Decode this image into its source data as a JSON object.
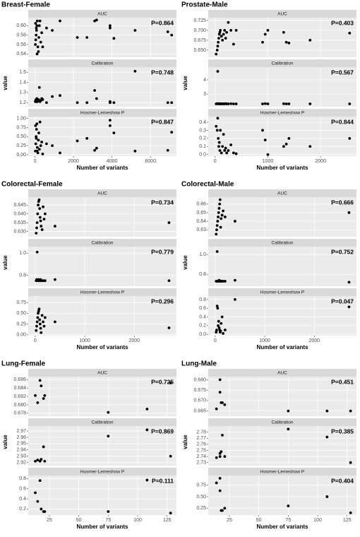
{
  "chart_data": [
    {
      "type": "scatter",
      "title": "Breast-Female",
      "xlabel": "Number of variants",
      "ylabel": "value",
      "color": "#000000",
      "grid": true,
      "xlim": [
        -350,
        7350
      ],
      "xticks": [
        0,
        2000,
        4000,
        6000
      ],
      "x": [
        20,
        40,
        60,
        80,
        100,
        120,
        150,
        180,
        200,
        230,
        260,
        300,
        350,
        400,
        30,
        70,
        110,
        600,
        900,
        1300,
        2200,
        2700,
        3100,
        3200,
        3900,
        3900,
        4100,
        5200,
        6900,
        7100
      ],
      "facets": [
        {
          "strip": "AUC",
          "annotation": "P=0.864",
          "ylim": [
            0.533,
            0.617
          ],
          "yticks": [
            0.54,
            0.56,
            0.58,
            {
              "value": 0.6,
              "label": "0.60"
            }
          ],
          "values": [
            0.56,
            0.57,
            0.58,
            0.59,
            0.6,
            0.61,
            0.555,
            0.545,
            0.575,
            0.6,
            0.61,
            0.565,
            0.585,
            0.555,
            0.605,
            0.595,
            0.54,
            0.595,
            0.59,
            0.61,
            0.575,
            0.575,
            0.61,
            0.612,
            0.6,
            0.595,
            0.573,
            0.59,
            0.587,
            0.58
          ]
        },
        {
          "strip": "Calibration",
          "annotation": "P=0.748",
          "ylim": [
            1.16,
            1.55
          ],
          "yticks": [
            1.2,
            1.3,
            1.4,
            1.5
          ],
          "values": [
            1.21,
            1.22,
            1.23,
            1.22,
            1.24,
            1.21,
            1.22,
            1.23,
            1.22,
            1.35,
            1.21,
            1.22,
            1.24,
            1.23,
            1.22,
            1.21,
            1.23,
            1.2,
            1.26,
            1.27,
            1.2,
            1.2,
            1.32,
            1.24,
            1.2,
            1.21,
            1.2,
            1.51,
            1.2,
            1.2
          ]
        },
        {
          "strip": "Hosmer-Lemeshow P",
          "annotation": "P=0.847",
          "ylim": [
            -0.04,
            1.05
          ],
          "yticks": [
            {
              "value": 0,
              "label": "0.00"
            },
            0.25,
            {
              "value": 0.5,
              "label": "0.50"
            },
            0.75,
            {
              "value": 1,
              "label": "1.00"
            }
          ],
          "values": [
            0.1,
            0.3,
            0.5,
            0.7,
            0.85,
            0.2,
            0.05,
            0.4,
            0.6,
            0.15,
            0.9,
            0.25,
            0.35,
            0.02,
            0.8,
            0.45,
            0.1,
            0.3,
            0.25,
            0.05,
            0.38,
            0.45,
            0.12,
            0.18,
            0.95,
            0.8,
            0.6,
            0.1,
            0.12,
            0.62
          ]
        }
      ]
    },
    {
      "type": "scatter",
      "title": "Prostate-Male",
      "xlabel": "Number of variants",
      "ylabel": "value",
      "color": "#000000",
      "grid": true,
      "xlim": [
        -130,
        2680
      ],
      "xticks": [
        0,
        1000,
        2000
      ],
      "x": [
        20,
        40,
        50,
        60,
        70,
        80,
        90,
        100,
        120,
        140,
        160,
        180,
        200,
        220,
        250,
        300,
        350,
        400,
        900,
        950,
        1000,
        1300,
        1350,
        1400,
        1800,
        2550
      ],
      "facets": [
        {
          "strip": "AUC",
          "annotation": "P=0.403",
          "ylim": [
            0.632,
            0.732
          ],
          "yticks": [
            {
              "value": 0.65,
              "label": "0.650"
            },
            {
              "value": 0.675,
              "label": "0.675"
            },
            {
              "value": 0.7,
              "label": "0.700"
            },
            {
              "value": 0.725,
              "label": "0.725"
            }
          ],
          "values": [
            0.64,
            0.65,
            0.66,
            0.67,
            0.68,
            0.69,
            0.695,
            0.7,
            0.685,
            0.675,
            0.69,
            0.7,
            0.68,
            0.695,
            0.72,
            0.7,
            0.665,
            0.7,
            0.67,
            0.69,
            0.7,
            0.695,
            0.67,
            0.668,
            0.675,
            0.693
          ]
        },
        {
          "strip": "Calibration",
          "annotation": "P=0.567",
          "ylim": [
            2.1,
            4.9
          ],
          "yticks": [
            3,
            4
          ],
          "values": [
            2.3,
            2.32,
            4.6,
            2.3,
            2.31,
            2.3,
            2.32,
            2.3,
            2.3,
            2.31,
            2.3,
            2.3,
            2.32,
            2.3,
            2.3,
            2.31,
            2.3,
            2.3,
            2.3,
            2.32,
            2.3,
            2.31,
            2.3,
            2.3,
            2.3,
            2.3
          ]
        },
        {
          "strip": "Hosmer-Lemeshow P",
          "annotation": "P=0.844",
          "ylim": [
            -0.02,
            0.47
          ],
          "yticks": [
            {
              "value": 0,
              "label": "0.0"
            },
            0.1,
            0.2,
            0.3,
            0.4
          ],
          "values": [
            0.35,
            0.3,
            0.45,
            0.2,
            0.1,
            0.15,
            0.05,
            0.3,
            0.02,
            0.1,
            0.25,
            0.05,
            0.08,
            0.02,
            0.05,
            0.12,
            0.02,
            0.01,
            0.3,
            0.18,
            0.0,
            0.1,
            0.13,
            0.2,
            0.1,
            0.2
          ]
        }
      ]
    },
    {
      "type": "scatter",
      "title": "Colorectal-Female",
      "xlabel": "Number of variants",
      "ylabel": "value",
      "color": "#000000",
      "grid": true,
      "xlim": [
        -140,
        2850
      ],
      "xticks": [
        0,
        1000,
        2000
      ],
      "x": [
        20,
        30,
        40,
        50,
        60,
        70,
        80,
        90,
        100,
        110,
        120,
        140,
        160,
        180,
        200,
        400,
        2700
      ],
      "facets": [
        {
          "strip": "AUC",
          "annotation": "P=0.734",
          "ylim": [
            0.627,
            0.6495
          ],
          "yticks": [
            {
              "value": 0.63,
              "label": "0.630"
            },
            {
              "value": 0.635,
              "label": "0.635"
            },
            {
              "value": 0.64,
              "label": "0.640"
            },
            {
              "value": 0.645,
              "label": "0.645"
            }
          ],
          "values": [
            0.629,
            0.632,
            0.635,
            0.64,
            0.645,
            0.647,
            0.648,
            0.643,
            0.638,
            0.636,
            0.633,
            0.631,
            0.644,
            0.637,
            0.64,
            0.633,
            0.635
          ]
        },
        {
          "strip": "Calibration",
          "annotation": "P=0.779",
          "ylim": [
            0.7,
            1.06
          ],
          "yticks": [
            0.8,
            {
              "value": 1,
              "label": "1.0"
            }
          ],
          "values": [
            0.75,
            0.76,
            1.01,
            0.75,
            0.75,
            0.76,
            0.75,
            0.75,
            0.75,
            0.76,
            0.75,
            0.75,
            0.75,
            0.75,
            0.75,
            0.76,
            0.75
          ]
        },
        {
          "strip": "Hosmer-Lemeshow P",
          "annotation": "P=0.296",
          "ylim": [
            -0.02,
            0.9
          ],
          "yticks": [
            {
              "value": 0,
              "label": "0.00"
            },
            0.25,
            {
              "value": 0.5,
              "label": "0.50"
            },
            0.75
          ],
          "values": [
            0.1,
            0.2,
            0.3,
            0.4,
            0.5,
            0.55,
            0.6,
            0.35,
            0.25,
            0.15,
            0.05,
            0.45,
            0.3,
            0.2,
            0.4,
            0.3,
            0.16
          ]
        }
      ]
    },
    {
      "type": "scatter",
      "title": "Colorectal-Male",
      "xlabel": "Number of variants",
      "ylabel": "value",
      "color": "#000000",
      "grid": true,
      "xlim": [
        -140,
        2850
      ],
      "xticks": [
        0,
        1000,
        2000
      ],
      "x": [
        20,
        30,
        40,
        50,
        60,
        70,
        80,
        90,
        100,
        110,
        120,
        140,
        160,
        200,
        400,
        2700
      ],
      "facets": [
        {
          "strip": "AUC",
          "annotation": "P=0.666",
          "ylim": [
            0.622,
            0.668
          ],
          "yticks": [
            0.63,
            0.64,
            0.65,
            0.66
          ],
          "values": [
            0.625,
            0.63,
            0.635,
            0.64,
            0.645,
            0.65,
            0.655,
            0.66,
            0.665,
            0.633,
            0.643,
            0.647,
            0.652,
            0.645,
            0.64,
            0.65
          ]
        },
        {
          "strip": "Calibration",
          "annotation": "P=0.752",
          "ylim": [
            0.68,
            1.08
          ],
          "yticks": [
            0.8,
            {
              "value": 1,
              "label": "1.0"
            }
          ],
          "values": [
            0.73,
            0.73,
            1.03,
            0.73,
            0.73,
            0.73,
            0.74,
            0.73,
            0.73,
            0.73,
            0.73,
            0.73,
            0.73,
            0.73,
            0.74,
            0.72
          ]
        },
        {
          "strip": "Hosmer-Lemeshow P",
          "annotation": "P=0.047",
          "ylim": [
            -0.03,
            0.88
          ],
          "yticks": [
            {
              "value": 0,
              "label": "0.0"
            },
            0.2,
            0.4,
            0.6,
            0.8
          ],
          "values": [
            0.05,
            0.1,
            0.65,
            0.6,
            0.2,
            0.3,
            0.15,
            0.1,
            0.05,
            0.08,
            0.25,
            0.4,
            0.02,
            0.1,
            0.8,
            0.63
          ]
        }
      ]
    },
    {
      "type": "scatter",
      "title": "Lung-Female",
      "xlabel": "Number of variants",
      "ylabel": "value",
      "color": "#000000",
      "grid": true,
      "xlim": [
        7,
        133
      ],
      "xticks": [
        25,
        50,
        75,
        100,
        125
      ],
      "x": [
        13,
        15,
        17,
        18,
        20,
        21,
        75,
        108,
        128
      ],
      "facets": [
        {
          "strip": "AUC",
          "annotation": "P=0.725",
          "ylim": [
            0.6773,
            0.6867
          ],
          "yticks": [
            0.678,
            {
              "value": 0.68,
              "label": "0.680"
            },
            0.682,
            0.684,
            0.686
          ],
          "values": [
            0.6822,
            0.6805,
            0.6858,
            0.6845,
            0.6815,
            0.6822,
            0.6782,
            0.679,
            0.6852
          ]
        },
        {
          "strip": "Calibration",
          "annotation": "P=0.869",
          "ylim": [
            2.915,
            2.978
          ],
          "yticks": [
            2.92,
            2.93,
            2.94,
            2.95,
            2.96,
            2.97
          ],
          "values": [
            2.922,
            2.924,
            2.922,
            2.925,
            2.945,
            2.922,
            2.962,
            2.972,
            2.93
          ]
        },
        {
          "strip": "Hosmer-Lemeshow P",
          "annotation": "P=0.111",
          "ylim": [
            0.08,
            0.86
          ],
          "yticks": [
            0.2,
            0.4,
            0.6,
            0.8
          ],
          "values": [
            0.52,
            0.35,
            0.76,
            0.2,
            0.15,
            0.15,
            0.15,
            0.77,
            0.12
          ]
        }
      ]
    },
    {
      "type": "scatter",
      "title": "Lung-Male",
      "xlabel": "Number of variants",
      "ylabel": "value",
      "color": "#000000",
      "grid": true,
      "xlim": [
        7,
        133
      ],
      "xticks": [
        25,
        50,
        75,
        100,
        125
      ],
      "x": [
        14,
        17,
        17,
        18,
        19,
        21,
        75,
        108,
        128
      ],
      "facets": [
        {
          "strip": "AUC",
          "annotation": "P=0.451",
          "ylim": [
            0.6625,
            0.6815
          ],
          "yticks": [
            0.665,
            {
              "value": 0.67,
              "label": "0.670"
            },
            0.675,
            {
              "value": 0.68,
              "label": "0.680"
            }
          ],
          "values": [
            0.666,
            0.68,
            0.674,
            0.669,
            0.669,
            0.668,
            0.665,
            0.665,
            0.665
          ]
        },
        {
          "strip": "Calibration",
          "annotation": "P=0.385",
          "ylim": [
            2.725,
            2.79
          ],
          "yticks": [
            2.73,
            2.74,
            2.75,
            2.76,
            2.77,
            2.78
          ],
          "values": [
            2.738,
            2.74,
            2.745,
            2.748,
            2.775,
            2.74,
            2.785,
            2.772,
            2.73
          ]
        },
        {
          "strip": "Hosmer-Lemeshow P",
          "annotation": "P=0.404",
          "ylim": [
            0.1,
            0.96
          ],
          "yticks": [
            0.25,
            {
              "value": 0.5,
              "label": "0.50"
            },
            0.75
          ],
          "values": [
            0.8,
            0.9,
            0.63,
            0.2,
            0.2,
            0.25,
            0.3,
            0.5,
            0.15
          ]
        }
      ]
    }
  ]
}
